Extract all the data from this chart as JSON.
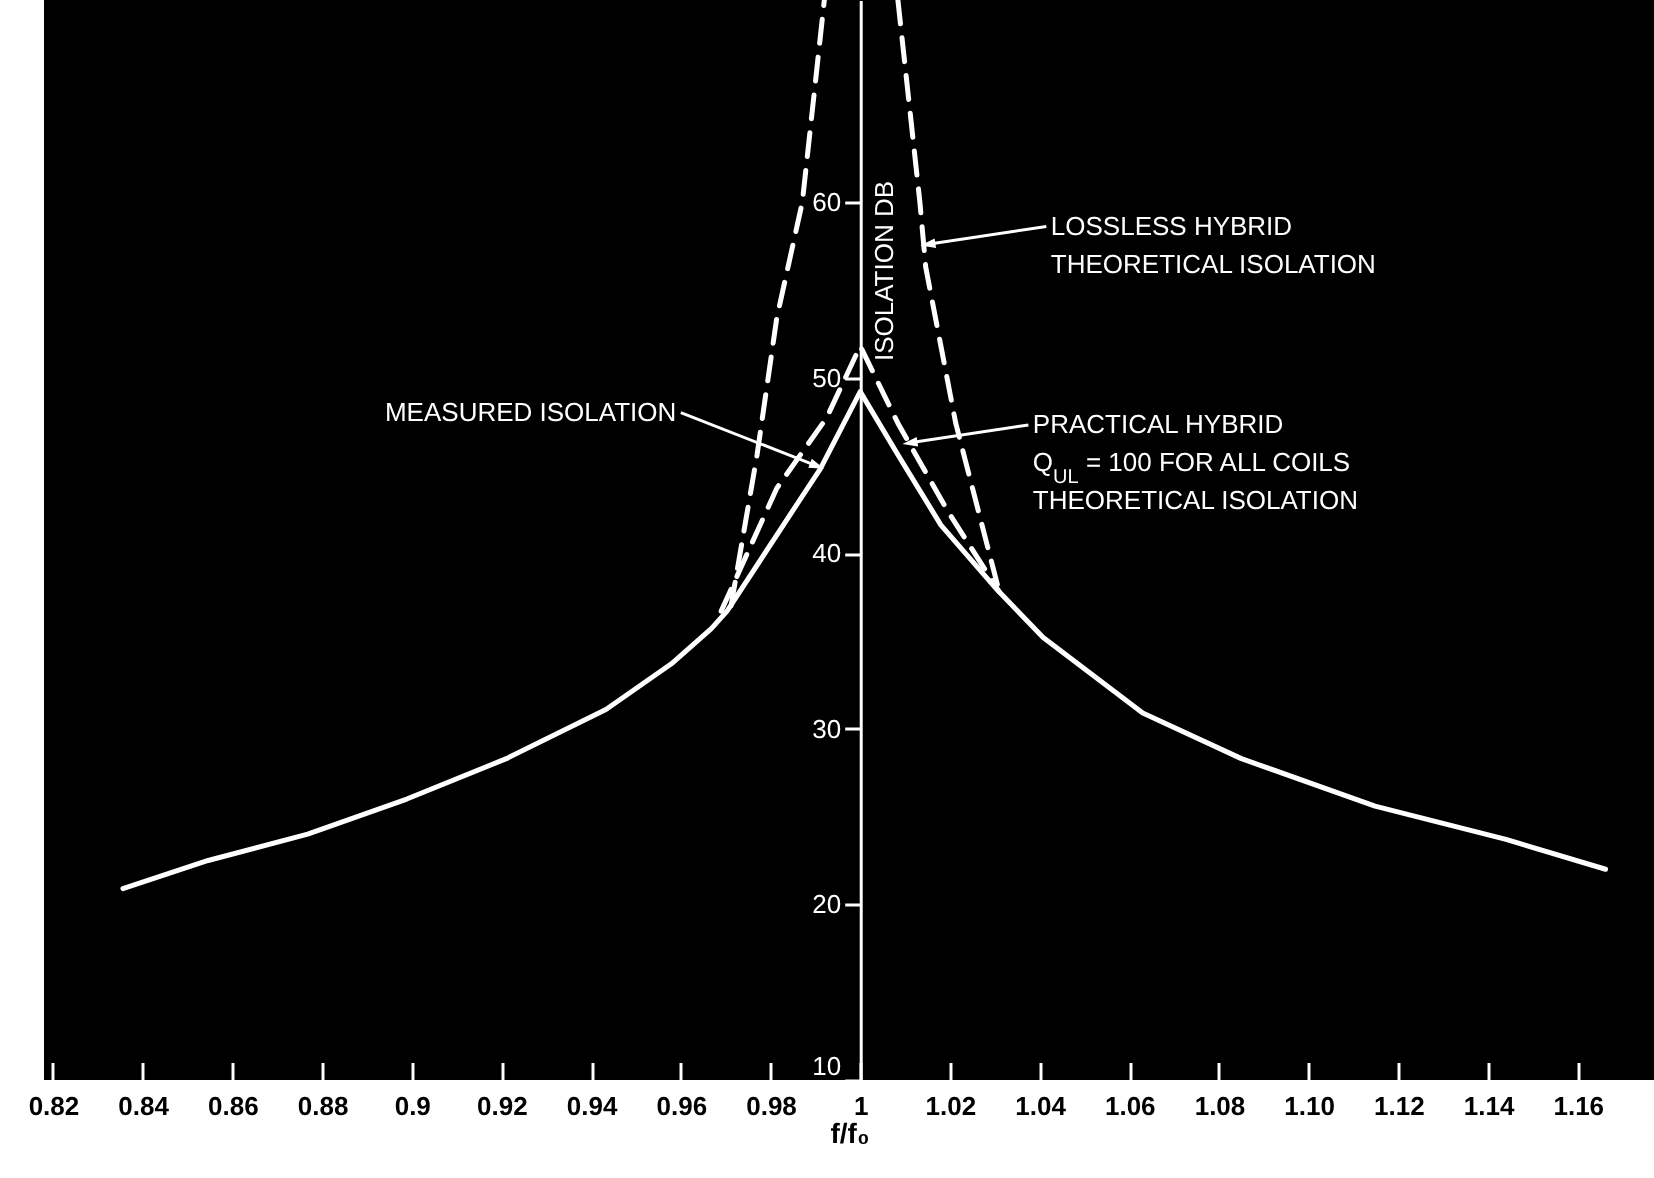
{
  "chart_data": {
    "type": "line",
    "xlabel": "f/f₀",
    "ylabel": "ISOLATION DB",
    "xlim": [
      0.818,
      1.177
    ],
    "ylim": [
      10,
      71.5
    ],
    "xticks": [
      0.82,
      0.84,
      0.86,
      0.88,
      0.9,
      0.92,
      0.94,
      0.96,
      0.98,
      1,
      1.02,
      1.04,
      1.06,
      1.08,
      {
        "value": 1.1,
        "label": "1.10"
      },
      1.12,
      1.14,
      1.16
    ],
    "yticks": [
      10,
      20,
      30,
      40,
      50,
      60
    ],
    "marker": "none",
    "series": [
      {
        "color": "#ffffff",
        "line_style": "solid",
        "x": [
          0.8356,
          0.8546,
          0.8768,
          0.8989,
          0.9211,
          0.9433,
          0.9579,
          0.9668,
          0.9703,
          0.9849,
          0.9911,
          1.0,
          1.0084,
          1.018,
          1.0306,
          1.0408,
          1.063,
          1.085,
          1.1148,
          1.144,
          1.1662
        ],
        "values": [
          20.9,
          22.5,
          24.0,
          26.0,
          28.3,
          31.1,
          33.7,
          35.7,
          36.7,
          42.4,
          44.8,
          49.2,
          45.6,
          41.6,
          37.9,
          35.2,
          30.9,
          28.3,
          25.6,
          23.7,
          22.0
        ]
      },
      {
        "color": "#ffffff",
        "line_style": "dashed",
        "x": [
          0.969,
          0.9814,
          0.9925,
          1.0,
          1.0084,
          1.0195,
          1.031
        ],
        "values": [
          36.7,
          43.7,
          47.7,
          51.8,
          47.4,
          42.4,
          37.8
        ]
      },
      {
        "color": "#ffffff",
        "line_style": "dashed",
        "x": [
          0.9712,
          0.977,
          0.9814,
          0.9871,
          0.992
        ],
        "values": [
          37.0,
          45.6,
          53.4,
          60,
          71.5
        ]
      },
      {
        "color": "#ffffff",
        "line_style": "dashed",
        "x": [
          1.0084,
          1.0133,
          1.0146,
          1.0213,
          1.031
        ],
        "values": [
          71.5,
          60,
          56.3,
          47.4,
          37.8
        ]
      }
    ],
    "annotations": [
      {
        "text": "MEASURED ISOLATION",
        "x": 0.99,
        "y": 45
      },
      {
        "text": "LOSSLESS HYBRID\nTHEORETICAL ISOLATION",
        "x": 1.0155,
        "y": 57.6
      },
      {
        "text": "PRACTICAL HYBRID\nQ$_{UL}$ = 100 FOR ALL COILS\nTHEORETICAL ISOLATION",
        "x": 1.0115,
        "y": 46.3
      }
    ]
  }
}
